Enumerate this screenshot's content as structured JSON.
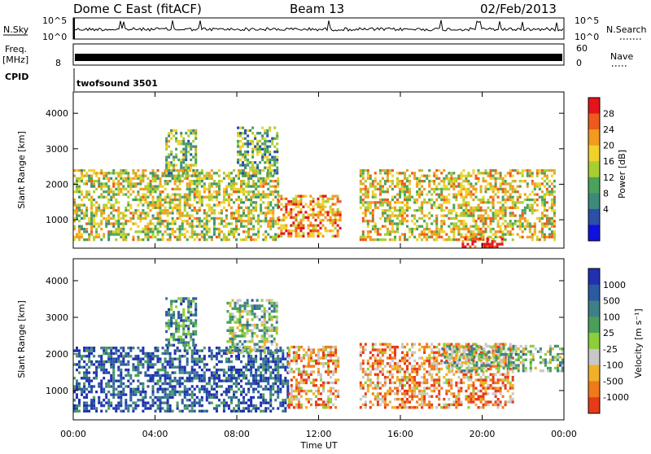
{
  "header": {
    "title": "Dome C East (fitACF)",
    "beam": "Beam 13",
    "date": "02/Feb/2013"
  },
  "status_panels": {
    "nsky_label": "N.Sky",
    "nsky_ticks": [
      "10^5",
      "10^0"
    ],
    "nsearch_label": "N.Search",
    "nsearch_ticks": [
      "10^5",
      "10^0"
    ],
    "freq_label_line1": "Freq.",
    "freq_label_line2": "[MHz]",
    "freq_ticks": [
      "8"
    ],
    "nave_label": "Nave",
    "nave_ticks": [
      "60",
      "0"
    ],
    "cpid_label": "CPID",
    "cpid_value": "twofsound 3501"
  },
  "chart_data": [
    {
      "type": "heatmap",
      "name": "power",
      "ylabel": "Slant Range [km]",
      "ylim": [
        200,
        4600
      ],
      "yticks": [
        "4000",
        "3000",
        "2000",
        "1000"
      ],
      "ytick_values": [
        4000,
        3000,
        2000,
        1000
      ],
      "colorbar_label": "Power [dB]",
      "colorbar_ticks": [
        "28",
        "24",
        "20",
        "16",
        "12",
        "8",
        "4"
      ],
      "colorbar_colors": [
        "#e4141a",
        "#ef5a1c",
        "#f39a1f",
        "#f0d22a",
        "#a8cf32",
        "#4aa35a",
        "#3d8a7c",
        "#2c4fa8",
        "#1010e0"
      ],
      "xlim_hours": [
        0,
        24
      ],
      "bands": [
        {
          "t0": 0,
          "t1": 10,
          "r0": 400,
          "r1": 2400,
          "level": 0.55
        },
        {
          "t0": 4.5,
          "t1": 6,
          "r0": 2200,
          "r1": 3500,
          "level": 0.45
        },
        {
          "t0": 8,
          "t1": 10,
          "r0": 2200,
          "r1": 3600,
          "level": 0.4
        },
        {
          "t0": 10,
          "t1": 13,
          "r0": 500,
          "r1": 1700,
          "level": 0.75
        },
        {
          "t0": 14,
          "t1": 23.5,
          "r0": 400,
          "r1": 2400,
          "level": 0.6
        },
        {
          "t0": 19,
          "t1": 21,
          "r0": 200,
          "r1": 500,
          "level": 0.9
        }
      ]
    },
    {
      "type": "heatmap",
      "name": "velocity",
      "ylabel": "Slant Range [km]",
      "ylim": [
        200,
        4600
      ],
      "yticks": [
        "4000",
        "3000",
        "2000",
        "1000"
      ],
      "ytick_values": [
        4000,
        3000,
        2000,
        1000
      ],
      "colorbar_label": "Velocity [m s⁻¹]",
      "colorbar_ticks": [
        "1000",
        "500",
        "100",
        "25",
        "-25",
        "-100",
        "-500",
        "-1000"
      ],
      "colorbar_colors": [
        "#2030b0",
        "#2a5aa0",
        "#3f7f88",
        "#4aa05a",
        "#8ccf3a",
        "#c8c8c8",
        "#f0b02a",
        "#f07a1a",
        "#e83a18"
      ],
      "xlim_hours": [
        0,
        24
      ],
      "bands": [
        {
          "t0": 0,
          "t1": 10.5,
          "r0": 400,
          "r1": 2200,
          "level": 0.85
        },
        {
          "t0": 4.5,
          "t1": 6,
          "r0": 2200,
          "r1": 3500,
          "level": 0.7
        },
        {
          "t0": 7.5,
          "t1": 10,
          "r0": 2000,
          "r1": 3500,
          "level": 0.55
        },
        {
          "t0": 10.5,
          "t1": 13,
          "r0": 500,
          "r1": 2200,
          "level": 0.25
        },
        {
          "t0": 14,
          "t1": 21.5,
          "r0": 500,
          "r1": 2300,
          "level": 0.22
        },
        {
          "t0": 18,
          "t1": 24,
          "r0": 1500,
          "r1": 2200,
          "level": 0.55
        }
      ]
    }
  ],
  "xaxis": {
    "ticks": [
      "00:00",
      "04:00",
      "08:00",
      "12:00",
      "16:00",
      "20:00",
      "00:00"
    ],
    "label": "Time UT"
  }
}
